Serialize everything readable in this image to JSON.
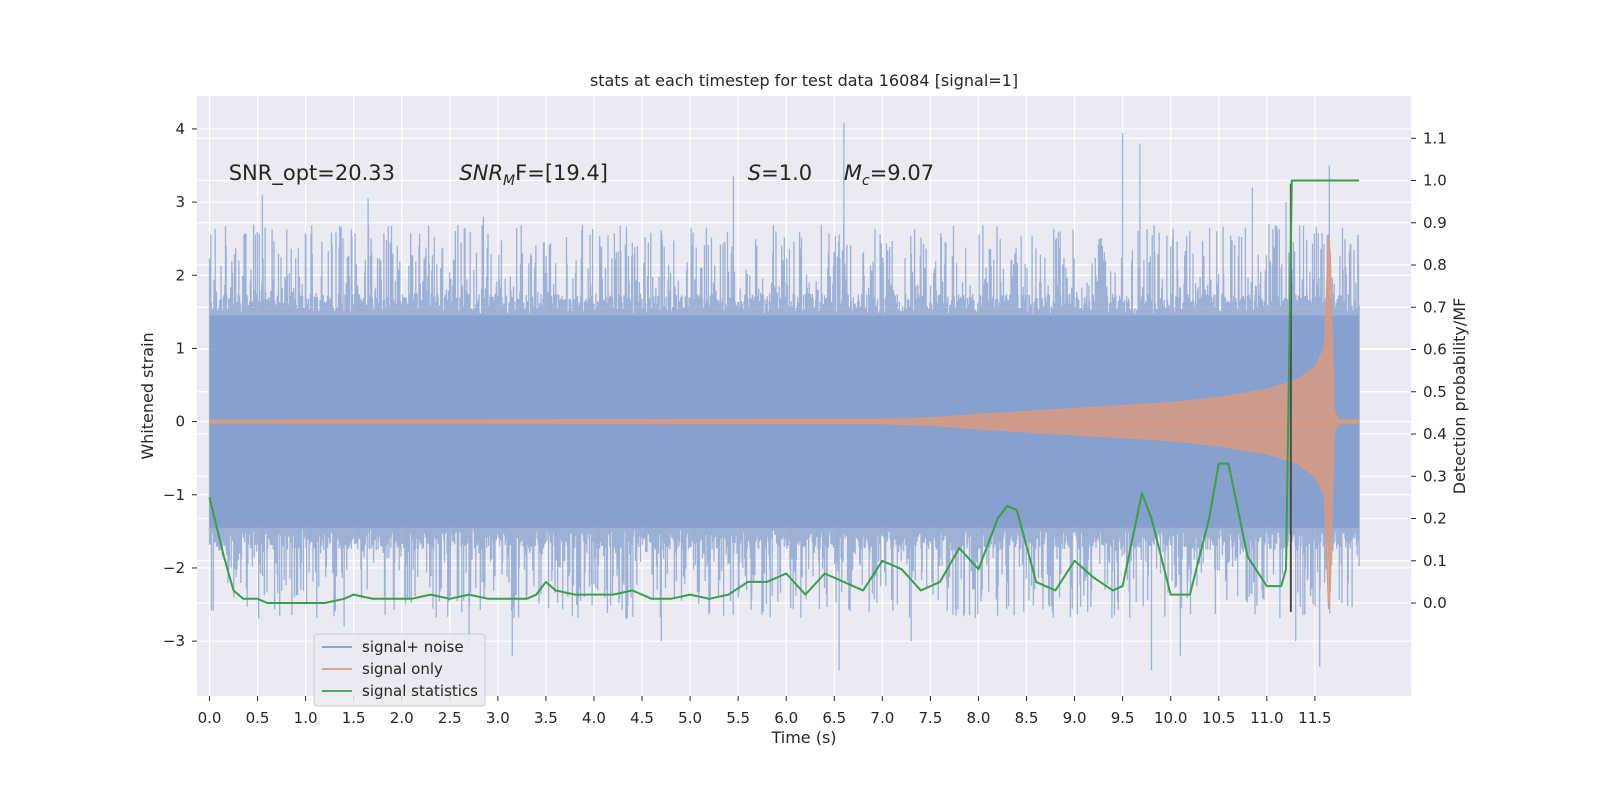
{
  "chart_data": {
    "type": "line",
    "title": "stats at each timestep for test data 16084 [signal=1]",
    "xlabel": "Time (s)",
    "ylabel": "Whitened strain",
    "ylabel_right": "Detection probability/MF",
    "xlim": [
      -0.13,
      12.5
    ],
    "ylim": [
      -3.75,
      4.45
    ],
    "ylim_right": [
      -0.22,
      1.2
    ],
    "x_ticks": [
      0.0,
      0.5,
      1.0,
      1.5,
      2.0,
      2.5,
      3.0,
      3.5,
      4.0,
      4.5,
      5.0,
      5.5,
      6.0,
      6.5,
      7.0,
      7.5,
      8.0,
      8.5,
      9.0,
      9.5,
      10.0,
      10.5,
      11.0,
      11.5
    ],
    "x_tick_labels": [
      "0.0",
      "0.5",
      "1.0",
      "1.5",
      "2.0",
      "2.5",
      "3.0",
      "3.5",
      "4.0",
      "4.5",
      "5.0",
      "5.5",
      "6.0",
      "6.5",
      "7.0",
      "7.5",
      "8.0",
      "8.5",
      "9.0",
      "9.5",
      "10.0",
      "10.5",
      "11.0",
      "11.5"
    ],
    "y_ticks": [
      -3,
      -2,
      -1,
      0,
      1,
      2,
      3,
      4
    ],
    "y_tick_labels": [
      "−3",
      "−2",
      "−1",
      "0",
      "1",
      "2",
      "3",
      "4"
    ],
    "y_ticks_right": [
      0.0,
      0.1,
      0.2,
      0.3,
      0.4,
      0.5,
      0.6,
      0.7,
      0.8,
      0.9,
      1.0,
      1.1
    ],
    "y_tick_labels_right": [
      "0.0",
      "0.1",
      "0.2",
      "0.3",
      "0.4",
      "0.5",
      "0.6",
      "0.7",
      "0.8",
      "0.9",
      "1.0",
      "1.1"
    ],
    "grid": true,
    "legend_position": "lower-left",
    "legend": [
      {
        "name": "signal+ noise",
        "color": "#7f9acb"
      },
      {
        "name": "signal only",
        "color": "#dd9a7d"
      },
      {
        "name": "signal statistics",
        "color": "#3b9e4a"
      }
    ],
    "annotations": [
      {
        "text": "SNR_opt=20.33",
        "x": 0.2,
        "y": 3.3
      },
      {
        "main": "SNR",
        "sub": "M",
        "rest": "F=[19.4]",
        "x": 2.6,
        "y": 3.3
      },
      {
        "main": "S",
        "rest": "=1.0",
        "x": 5.6,
        "y": 3.3
      },
      {
        "main": "M",
        "sub": "c",
        "rest": "=9.07",
        "x": 6.6,
        "y": 3.3
      }
    ],
    "vertical_marker_x": 11.25,
    "noise_series": {
      "name": "signal+ noise",
      "x_range": [
        0.0,
        11.96
      ],
      "envelope_upper_typical": 1.5,
      "envelope_lower_typical": -1.5,
      "max": 4.08,
      "min": -3.4,
      "spikes_up": [
        [
          0.55,
          3.1
        ],
        [
          1.65,
          3.05
        ],
        [
          2.85,
          2.8
        ],
        [
          5.45,
          3.35
        ],
        [
          6.6,
          4.08
        ],
        [
          8.85,
          2.6
        ],
        [
          9.5,
          3.95
        ],
        [
          9.68,
          3.8
        ],
        [
          10.85,
          3.2
        ],
        [
          11.2,
          3.0
        ],
        [
          11.65,
          3.5
        ],
        [
          11.95,
          2.55
        ]
      ],
      "spikes_down": [
        [
          0.3,
          -1.9
        ],
        [
          1.4,
          -2.8
        ],
        [
          2.7,
          -3.05
        ],
        [
          3.15,
          -3.2
        ],
        [
          4.7,
          -3.0
        ],
        [
          6.55,
          -3.4
        ],
        [
          7.3,
          -3.0
        ],
        [
          9.8,
          -3.4
        ],
        [
          10.1,
          -3.2
        ],
        [
          11.3,
          -3.0
        ],
        [
          11.55,
          -3.35
        ]
      ]
    },
    "signal_envelope": {
      "name": "signal only",
      "x": [
        0.0,
        7.0,
        7.5,
        8.0,
        8.5,
        9.0,
        9.5,
        10.0,
        10.5,
        11.0,
        11.3,
        11.5,
        11.6,
        11.65,
        11.7,
        11.75,
        11.96
      ],
      "amplitude": [
        0.02,
        0.03,
        0.05,
        0.1,
        0.14,
        0.18,
        0.22,
        0.26,
        0.33,
        0.44,
        0.56,
        0.75,
        1.0,
        2.9,
        0.15,
        0.02,
        0.02
      ]
    },
    "statistics_series": {
      "name": "signal statistics",
      "x": [
        0.0,
        0.15,
        0.25,
        0.35,
        0.5,
        0.6,
        0.8,
        1.0,
        1.2,
        1.4,
        1.5,
        1.7,
        1.9,
        2.1,
        2.3,
        2.5,
        2.7,
        2.9,
        3.1,
        3.3,
        3.4,
        3.5,
        3.6,
        3.8,
        4.0,
        4.2,
        4.4,
        4.6,
        4.8,
        5.0,
        5.2,
        5.4,
        5.6,
        5.8,
        6.0,
        6.2,
        6.4,
        6.6,
        6.8,
        7.0,
        7.2,
        7.4,
        7.6,
        7.8,
        8.0,
        8.2,
        8.3,
        8.4,
        8.6,
        8.8,
        9.0,
        9.2,
        9.4,
        9.5,
        9.7,
        9.8,
        10.0,
        10.2,
        10.4,
        10.5,
        10.6,
        10.8,
        11.0,
        11.15,
        11.2,
        11.26,
        11.35,
        11.5,
        11.96
      ],
      "values": [
        0.25,
        0.11,
        0.03,
        0.01,
        0.01,
        0.0,
        0.0,
        0.0,
        0.0,
        0.01,
        0.02,
        0.01,
        0.01,
        0.01,
        0.02,
        0.01,
        0.02,
        0.01,
        0.01,
        0.01,
        0.02,
        0.05,
        0.03,
        0.02,
        0.02,
        0.02,
        0.03,
        0.01,
        0.01,
        0.02,
        0.01,
        0.02,
        0.05,
        0.05,
        0.07,
        0.02,
        0.07,
        0.05,
        0.03,
        0.1,
        0.08,
        0.03,
        0.05,
        0.13,
        0.08,
        0.2,
        0.23,
        0.22,
        0.05,
        0.03,
        0.1,
        0.06,
        0.03,
        0.04,
        0.26,
        0.2,
        0.02,
        0.02,
        0.2,
        0.33,
        0.33,
        0.11,
        0.04,
        0.04,
        0.08,
        1.0,
        1.0,
        1.0,
        1.0
      ]
    }
  }
}
